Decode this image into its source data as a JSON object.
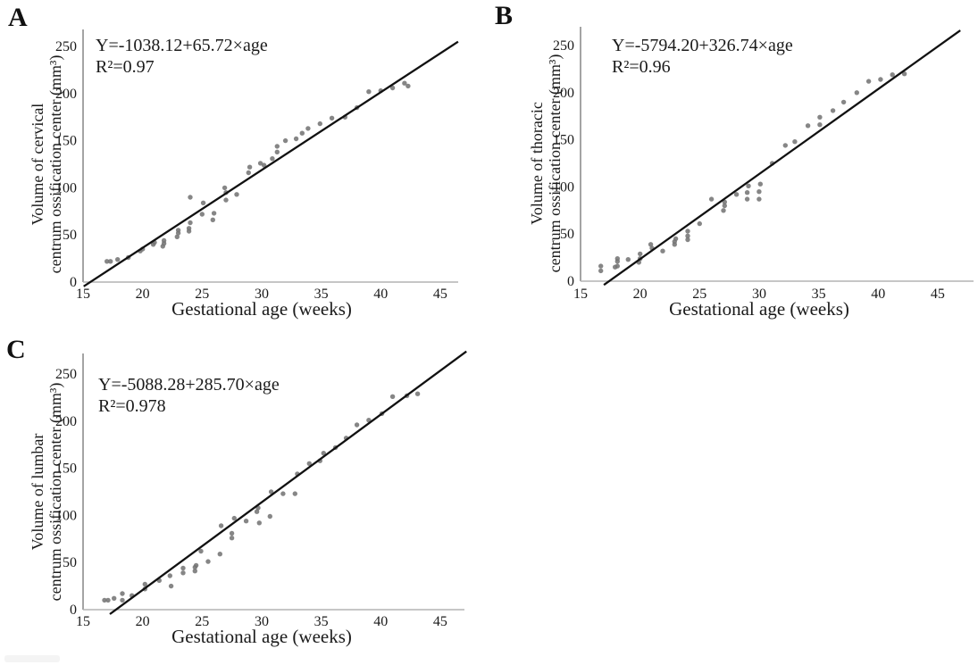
{
  "figure_letters": {
    "a": "A",
    "b": "B",
    "c": "C"
  },
  "colors": {
    "point": "#757575",
    "regression_line": "#111111",
    "axis_vertical": "#9a9a9a",
    "axis_horizontal": "#b4b4b4",
    "text": "#1a1a1a"
  },
  "chart_data": [
    {
      "type": "scatter",
      "panel": "A",
      "equation": "Y=-1038.12+65.72×age",
      "r_squared": "R²=0.97",
      "xlabel": "Gestational age (weeks)",
      "ylabel_line1": "Volume of cervical",
      "ylabel_line2": "centrum ossification center (mm³)",
      "x_ticks": [
        15,
        20,
        25,
        30,
        35,
        40,
        45
      ],
      "y_ticks": [
        0,
        50,
        100,
        150,
        200,
        250
      ],
      "xlim": [
        15,
        47
      ],
      "ylim": [
        0,
        265
      ],
      "grid": false,
      "regression_line_endpoints": {
        "x1": 15.05,
        "y1": -4.5,
        "x2": 46.5,
        "y2": 255
      },
      "points": [
        [
          17.0,
          22
        ],
        [
          17.3,
          22
        ],
        [
          17.9,
          24
        ],
        [
          18.8,
          26
        ],
        [
          19.8,
          33
        ],
        [
          20.0,
          35
        ],
        [
          20.9,
          40
        ],
        [
          21.0,
          42
        ],
        [
          21.7,
          38
        ],
        [
          21.8,
          41
        ],
        [
          21.8,
          44
        ],
        [
          22.9,
          48
        ],
        [
          23.0,
          52
        ],
        [
          23.0,
          55
        ],
        [
          23.9,
          54
        ],
        [
          23.9,
          57
        ],
        [
          24.0,
          63
        ],
        [
          24.0,
          90
        ],
        [
          25.0,
          72
        ],
        [
          25.1,
          84
        ],
        [
          25.9,
          66
        ],
        [
          26.0,
          73
        ],
        [
          26.9,
          100
        ],
        [
          27.0,
          95
        ],
        [
          27.0,
          87
        ],
        [
          27.9,
          93
        ],
        [
          28.9,
          116
        ],
        [
          29.0,
          122
        ],
        [
          29.9,
          126
        ],
        [
          30.2,
          124
        ],
        [
          30.9,
          131
        ],
        [
          31.3,
          138
        ],
        [
          31.3,
          144
        ],
        [
          32.0,
          150
        ],
        [
          32.9,
          152
        ],
        [
          33.4,
          158
        ],
        [
          33.9,
          163
        ],
        [
          34.9,
          168
        ],
        [
          35.9,
          174
        ],
        [
          37.0,
          175
        ],
        [
          38.0,
          185
        ],
        [
          39.0,
          202
        ],
        [
          40.0,
          203
        ],
        [
          41.0,
          206
        ],
        [
          42.0,
          211
        ],
        [
          42.3,
          208
        ]
      ]
    },
    {
      "type": "scatter",
      "panel": "B",
      "equation": "Y=-5794.20+326.74×age",
      "r_squared": "R²=0.96",
      "xlabel": "Gestational age (weeks)",
      "ylabel_line1": "Volume of thoracic",
      "ylabel_line2": "centrum ossification center (mm³)",
      "x_ticks": [
        15,
        20,
        25,
        30,
        35,
        40,
        45
      ],
      "y_ticks": [
        0,
        50,
        100,
        150,
        200,
        250
      ],
      "xlim": [
        15,
        47
      ],
      "ylim": [
        0,
        265
      ],
      "grid": false,
      "regression_line_endpoints": {
        "x1": 16.96,
        "y1": -4.0,
        "x2": 46.9,
        "y2": 266
      },
      "points": [
        [
          16.7,
          16
        ],
        [
          16.7,
          11
        ],
        [
          17.9,
          15
        ],
        [
          18.1,
          24
        ],
        [
          18.1,
          21
        ],
        [
          18.1,
          16
        ],
        [
          19.0,
          23
        ],
        [
          19.9,
          20
        ],
        [
          20.0,
          29
        ],
        [
          20.0,
          24
        ],
        [
          20.9,
          39
        ],
        [
          21.0,
          35
        ],
        [
          21.9,
          32
        ],
        [
          22.9,
          39
        ],
        [
          22.9,
          42
        ],
        [
          23.0,
          45
        ],
        [
          24.0,
          44
        ],
        [
          24.0,
          48
        ],
        [
          24.0,
          53
        ],
        [
          25.0,
          61
        ],
        [
          26.0,
          87
        ],
        [
          27.0,
          75
        ],
        [
          27.1,
          80
        ],
        [
          27.1,
          84
        ],
        [
          28.1,
          92
        ],
        [
          29.0,
          87
        ],
        [
          29.0,
          94
        ],
        [
          29.1,
          101
        ],
        [
          30.0,
          87
        ],
        [
          30.0,
          95
        ],
        [
          30.1,
          103
        ],
        [
          31.1,
          125
        ],
        [
          32.2,
          144
        ],
        [
          33.0,
          148
        ],
        [
          34.1,
          165
        ],
        [
          35.1,
          166
        ],
        [
          35.1,
          174
        ],
        [
          36.2,
          181
        ],
        [
          37.1,
          190
        ],
        [
          38.2,
          200
        ],
        [
          39.2,
          212
        ],
        [
          40.2,
          214
        ],
        [
          41.2,
          219
        ],
        [
          42.2,
          220
        ]
      ]
    },
    {
      "type": "scatter",
      "panel": "C",
      "equation": "Y=-5088.28+285.70×age",
      "r_squared": "R²=0.978",
      "xlabel": "Gestational age (weeks)",
      "ylabel_line1": "Volume of lumbar",
      "ylabel_line2": "centrum ossification center (mm³)",
      "x_ticks": [
        15,
        20,
        25,
        30,
        35,
        40,
        45
      ],
      "y_ticks": [
        0,
        50,
        100,
        150,
        200,
        250
      ],
      "xlim": [
        15,
        47
      ],
      "ylim": [
        0,
        270
      ],
      "grid": false,
      "regression_line_endpoints": {
        "x1": 17.25,
        "y1": -4.7,
        "x2": 47.2,
        "y2": 274
      },
      "points": [
        [
          16.8,
          10
        ],
        [
          17.1,
          10
        ],
        [
          17.6,
          12
        ],
        [
          18.3,
          10
        ],
        [
          18.3,
          17
        ],
        [
          19.1,
          15
        ],
        [
          20.2,
          22
        ],
        [
          20.2,
          27
        ],
        [
          21.4,
          31
        ],
        [
          22.3,
          36
        ],
        [
          22.4,
          25
        ],
        [
          23.4,
          39
        ],
        [
          23.4,
          44
        ],
        [
          24.4,
          41
        ],
        [
          24.4,
          45
        ],
        [
          24.5,
          47
        ],
        [
          24.9,
          62
        ],
        [
          25.5,
          51
        ],
        [
          26.5,
          59
        ],
        [
          26.6,
          89
        ],
        [
          27.5,
          76
        ],
        [
          27.5,
          81
        ],
        [
          27.7,
          97
        ],
        [
          28.7,
          94
        ],
        [
          29.6,
          104
        ],
        [
          29.7,
          108
        ],
        [
          29.8,
          92
        ],
        [
          30.7,
          99
        ],
        [
          30.8,
          125
        ],
        [
          31.8,
          123
        ],
        [
          32.8,
          123
        ],
        [
          33.0,
          144
        ],
        [
          34.0,
          155
        ],
        [
          34.9,
          158
        ],
        [
          35.2,
          166
        ],
        [
          36.2,
          172
        ],
        [
          37.1,
          182
        ],
        [
          38.0,
          196
        ],
        [
          39.0,
          201
        ],
        [
          40.1,
          208
        ],
        [
          41.0,
          226
        ],
        [
          42.2,
          227
        ],
        [
          43.1,
          229
        ]
      ]
    }
  ]
}
